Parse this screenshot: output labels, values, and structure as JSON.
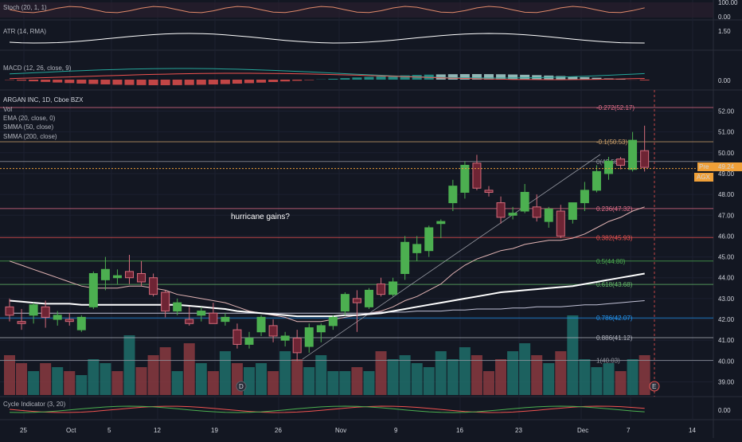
{
  "chart_data": {
    "type": "candlestick",
    "title": "ARGAN INC, 1D, Cboe BZX",
    "indicator_labels": {
      "stoch": "Stoch (20, 1, 1)",
      "atr": "ATR (14, RMA)",
      "macd": "MACD (12, 26, close, 9)",
      "vol": "Vol",
      "ema": "EMA (20, close, 0)",
      "smma50": "SMMA (50, close)",
      "smma200": "SMMA (200, close)",
      "cycle": "Cycle Indicator (3, 20)"
    },
    "price_axis": {
      "ylim": [
        38.5,
        52.7
      ],
      "ticks": [
        "52.00",
        "51.00",
        "50.00",
        "49.00",
        "48.00",
        "47.00",
        "46.00",
        "45.00",
        "44.00",
        "43.00",
        "42.00",
        "41.00",
        "40.00",
        "39.00"
      ]
    },
    "pane_ticks": {
      "stoch": [
        "100.00",
        "0.00"
      ],
      "atr": [
        "1.50"
      ],
      "macd": [
        "0.00"
      ],
      "cycle": [
        "0.00"
      ]
    },
    "x_ticks": [
      "25",
      "Oct",
      "5",
      "12",
      "19",
      "26",
      "Nov",
      "9",
      "16",
      "23",
      "Dec",
      "7",
      "14"
    ],
    "candles": [
      {
        "o": 42.6,
        "h": 43.0,
        "l": 41.9,
        "c": 42.2
      },
      {
        "o": 41.9,
        "h": 42.5,
        "l": 41.5,
        "c": 41.8
      },
      {
        "o": 42.2,
        "h": 42.8,
        "l": 41.8,
        "c": 42.7
      },
      {
        "o": 42.6,
        "h": 42.9,
        "l": 41.6,
        "c": 42.1
      },
      {
        "o": 42.0,
        "h": 42.4,
        "l": 41.7,
        "c": 42.2
      },
      {
        "o": 42.0,
        "h": 42.3,
        "l": 41.7,
        "c": 41.9
      },
      {
        "o": 41.5,
        "h": 42.2,
        "l": 41.4,
        "c": 42.1
      },
      {
        "o": 42.6,
        "h": 44.3,
        "l": 42.5,
        "c": 44.2
      },
      {
        "o": 43.9,
        "h": 45.0,
        "l": 43.4,
        "c": 44.4
      },
      {
        "o": 44.0,
        "h": 44.4,
        "l": 43.7,
        "c": 44.1
      },
      {
        "o": 44.3,
        "h": 45.1,
        "l": 43.7,
        "c": 44.0
      },
      {
        "o": 44.2,
        "h": 44.8,
        "l": 43.6,
        "c": 43.8
      },
      {
        "o": 44.0,
        "h": 44.2,
        "l": 43.1,
        "c": 43.2
      },
      {
        "o": 43.3,
        "h": 43.4,
        "l": 42.1,
        "c": 42.4
      },
      {
        "o": 42.4,
        "h": 43.0,
        "l": 42.2,
        "c": 42.8
      },
      {
        "o": 42.0,
        "h": 42.6,
        "l": 41.7,
        "c": 41.8
      },
      {
        "o": 42.2,
        "h": 42.6,
        "l": 41.9,
        "c": 42.4
      },
      {
        "o": 42.3,
        "h": 42.8,
        "l": 41.8,
        "c": 41.8
      },
      {
        "o": 41.9,
        "h": 42.3,
        "l": 41.7,
        "c": 42.1
      },
      {
        "o": 41.5,
        "h": 41.8,
        "l": 40.6,
        "c": 40.8
      },
      {
        "o": 40.8,
        "h": 41.4,
        "l": 40.6,
        "c": 41.1
      },
      {
        "o": 41.4,
        "h": 42.2,
        "l": 41.2,
        "c": 42.1
      },
      {
        "o": 41.7,
        "h": 42.0,
        "l": 40.9,
        "c": 41.2
      },
      {
        "o": 41.0,
        "h": 41.4,
        "l": 40.7,
        "c": 41.2
      },
      {
        "o": 41.1,
        "h": 41.5,
        "l": 40.0,
        "c": 40.4
      },
      {
        "o": 40.7,
        "h": 41.8,
        "l": 40.4,
        "c": 41.6
      },
      {
        "o": 41.4,
        "h": 41.8,
        "l": 40.9,
        "c": 41.7
      },
      {
        "o": 41.7,
        "h": 42.2,
        "l": 41.5,
        "c": 42.1
      },
      {
        "o": 42.4,
        "h": 43.3,
        "l": 42.2,
        "c": 43.2
      },
      {
        "o": 43.0,
        "h": 43.4,
        "l": 41.4,
        "c": 42.8
      },
      {
        "o": 42.6,
        "h": 43.5,
        "l": 42.5,
        "c": 43.4
      },
      {
        "o": 43.7,
        "h": 44.0,
        "l": 43.1,
        "c": 43.2
      },
      {
        "o": 43.2,
        "h": 44.0,
        "l": 43.1,
        "c": 43.8
      },
      {
        "o": 44.2,
        "h": 46.0,
        "l": 43.9,
        "c": 45.7
      },
      {
        "o": 45.2,
        "h": 46.0,
        "l": 44.8,
        "c": 45.6
      },
      {
        "o": 45.3,
        "h": 46.5,
        "l": 45.0,
        "c": 46.4
      },
      {
        "o": 46.6,
        "h": 46.8,
        "l": 45.9,
        "c": 46.7
      },
      {
        "o": 47.6,
        "h": 48.7,
        "l": 47.2,
        "c": 48.4
      },
      {
        "o": 48.1,
        "h": 49.6,
        "l": 47.8,
        "c": 49.4
      },
      {
        "o": 49.5,
        "h": 49.9,
        "l": 48.2,
        "c": 48.3
      },
      {
        "o": 48.2,
        "h": 48.4,
        "l": 47.9,
        "c": 48.1
      },
      {
        "o": 47.6,
        "h": 47.9,
        "l": 46.6,
        "c": 46.9
      },
      {
        "o": 47.0,
        "h": 47.4,
        "l": 46.8,
        "c": 47.1
      },
      {
        "o": 47.2,
        "h": 48.5,
        "l": 47.1,
        "c": 48.1
      },
      {
        "o": 47.4,
        "h": 48.0,
        "l": 46.7,
        "c": 46.9
      },
      {
        "o": 46.7,
        "h": 47.4,
        "l": 46.4,
        "c": 47.3
      },
      {
        "o": 47.2,
        "h": 47.5,
        "l": 45.9,
        "c": 46.0
      },
      {
        "o": 46.8,
        "h": 47.6,
        "l": 46.6,
        "c": 47.6
      },
      {
        "o": 47.6,
        "h": 48.6,
        "l": 47.2,
        "c": 48.2
      },
      {
        "o": 48.2,
        "h": 49.4,
        "l": 48.1,
        "c": 49.1
      },
      {
        "o": 49.0,
        "h": 49.8,
        "l": 48.7,
        "c": 49.6
      },
      {
        "o": 49.7,
        "h": 49.8,
        "l": 49.2,
        "c": 49.4
      },
      {
        "o": 49.2,
        "h": 51.0,
        "l": 49.1,
        "c": 50.6
      },
      {
        "o": 50.1,
        "h": 51.3,
        "l": 49.1,
        "c": 49.3
      }
    ],
    "volume_up": [
      false,
      false,
      true,
      false,
      true,
      false,
      true,
      true,
      true,
      false,
      true,
      false,
      false,
      false,
      true,
      false,
      true,
      false,
      true,
      false,
      true,
      true,
      false,
      true,
      false,
      true,
      true,
      true,
      true,
      false,
      true,
      false,
      true,
      true,
      true,
      true,
      true,
      true,
      true,
      false,
      false,
      false,
      true,
      true,
      false,
      true,
      false,
      true,
      true,
      true,
      true,
      false,
      true,
      false
    ],
    "volume": [
      0.5,
      0.4,
      0.3,
      0.4,
      0.35,
      0.3,
      0.25,
      0.45,
      0.4,
      0.3,
      0.75,
      0.35,
      0.5,
      0.6,
      0.3,
      0.65,
      0.4,
      0.3,
      0.55,
      0.4,
      0.35,
      0.4,
      0.3,
      0.55,
      0.45,
      0.35,
      0.5,
      0.3,
      0.3,
      0.35,
      0.3,
      0.55,
      0.45,
      0.5,
      0.4,
      0.35,
      0.55,
      0.45,
      0.6,
      0.5,
      0.3,
      0.45,
      0.55,
      0.65,
      0.5,
      0.4,
      0.55,
      1.0,
      0.45,
      0.35,
      0.4,
      0.3,
      0.45,
      0.5
    ],
    "ema20": [
      44.8,
      44.6,
      44.4,
      44.2,
      44.0,
      43.8,
      43.6,
      43.5,
      43.5,
      43.5,
      43.6,
      43.6,
      43.5,
      43.4,
      43.2,
      43.1,
      43.0,
      42.9,
      42.8,
      42.6,
      42.4,
      42.3,
      42.2,
      42.1,
      41.9,
      41.9,
      41.9,
      42.0,
      42.1,
      42.2,
      42.3,
      42.4,
      42.6,
      42.9,
      43.1,
      43.4,
      43.7,
      44.2,
      44.6,
      44.9,
      45.1,
      45.3,
      45.4,
      45.6,
      45.7,
      45.8,
      45.8,
      45.9,
      46.1,
      46.4,
      46.7,
      46.9,
      47.2,
      47.4
    ],
    "smma50": [
      42.9,
      42.85,
      42.8,
      42.75,
      42.75,
      42.75,
      42.7,
      42.7,
      42.7,
      42.7,
      42.7,
      42.7,
      42.7,
      42.7,
      42.7,
      42.65,
      42.6,
      42.55,
      42.5,
      42.4,
      42.35,
      42.3,
      42.25,
      42.2,
      42.15,
      42.15,
      42.15,
      42.15,
      42.2,
      42.2,
      42.25,
      42.3,
      42.4,
      42.5,
      42.6,
      42.7,
      42.8,
      42.9,
      43.0,
      43.1,
      43.2,
      43.3,
      43.35,
      43.4,
      43.45,
      43.5,
      43.55,
      43.6,
      43.7,
      43.8,
      43.9,
      44.0,
      44.1,
      44.2
    ],
    "smma200": [
      42.3,
      42.3,
      42.3,
      42.3,
      42.3,
      42.3,
      42.3,
      42.3,
      42.3,
      42.3,
      42.3,
      42.3,
      42.3,
      42.3,
      42.3,
      42.3,
      42.3,
      42.3,
      42.3,
      42.3,
      42.3,
      42.3,
      42.3,
      42.3,
      42.3,
      42.3,
      42.3,
      42.3,
      42.3,
      42.3,
      42.3,
      42.35,
      42.35,
      42.35,
      42.4,
      42.4,
      42.4,
      42.45,
      42.45,
      42.5,
      42.5,
      42.5,
      42.55,
      42.55,
      42.6,
      42.6,
      42.6,
      42.65,
      42.7,
      42.7,
      42.75,
      42.8,
      42.85,
      42.9
    ],
    "fib_levels": [
      {
        "label": "-0.272(52.17)",
        "value": 52.17,
        "color": "#e76f8b"
      },
      {
        "label": "-0.1(50.53)",
        "value": 50.53,
        "color": "#d1a36b"
      },
      {
        "label": "0(49.58)",
        "value": 49.58,
        "color": "#9598a1"
      },
      {
        "label": "0.236(47.32)",
        "value": 47.32,
        "color": "#e76f8b"
      },
      {
        "label": "0.382(45.93)",
        "value": 45.93,
        "color": "#ef5350"
      },
      {
        "label": "0.5(44.80)",
        "value": 44.8,
        "color": "#4caf50"
      },
      {
        "label": "0.618(43.68)",
        "value": 43.68,
        "color": "#66bb6a"
      },
      {
        "label": "0.786(42.07)",
        "value": 42.07,
        "color": "#2196f3"
      },
      {
        "label": "0.886(41.12)",
        "value": 41.12,
        "color": "#b2b5be"
      },
      {
        "label": "1(40.03)",
        "value": 40.03,
        "color": "#9598a1"
      }
    ],
    "current_price": {
      "label": "49.24",
      "value": 49.24,
      "pre_label": "Pre",
      "ticker": "AGX"
    },
    "annotation": "hurricane gains?",
    "event_markers": [
      "D",
      "E"
    ]
  },
  "colors": {
    "up": "#26a69a",
    "up_body": "#4caf50",
    "down": "#ef5350",
    "down_body": "#7a2e3a",
    "ema": "#e2b4b4",
    "smma50": "#ffffff",
    "smma200": "#c2c2d6",
    "price_line": "#f0a038"
  }
}
